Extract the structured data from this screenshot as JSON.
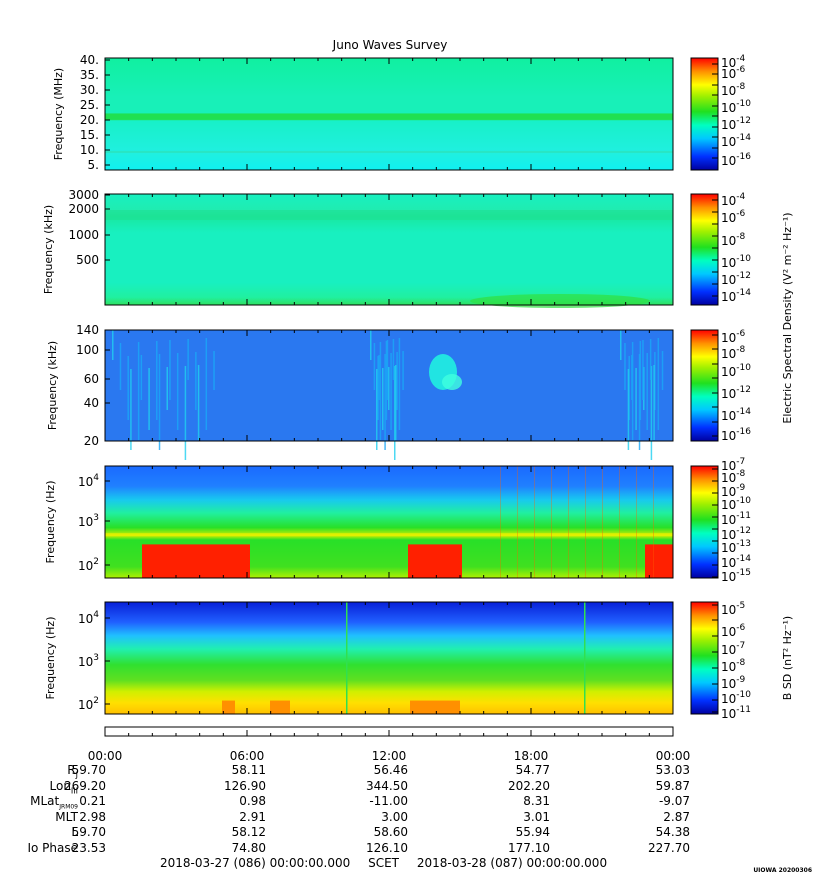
{
  "title": "Juno Waves Survey",
  "stamp": "UIOWA 20200306",
  "colors": {
    "background": "#ffffff",
    "axis": "#000000",
    "panel_cyan": "#1ef0e0",
    "panel_blue": "#2a78f0",
    "dark_blue": "#0000c8",
    "red": "#ff2000",
    "yellow": "#ffe000",
    "green": "#30e030"
  },
  "chart_data": [
    {
      "type": "heatmap",
      "name": "panel-hfr-high",
      "ylabel": "Frequency (MHz)",
      "yticks": [
        "40.",
        "35.",
        "30.",
        "25.",
        "20.",
        "15.",
        "10.",
        "5."
      ],
      "ylim": [
        3,
        41
      ],
      "colorbar_labels": [
        "-4",
        "-6",
        "-8",
        "-10",
        "-12",
        "-14",
        "-16"
      ],
      "colorbar_title": ""
    },
    {
      "type": "heatmap",
      "name": "panel-hfr-low",
      "ylabel": "Frequency (kHz)",
      "yticks": [
        "3000",
        "2000",
        "1000",
        "500"
      ],
      "yscale": "log",
      "colorbar_labels": [
        "-4",
        "-6",
        "-8",
        "-10",
        "-12",
        "-14"
      ],
      "colorbar_title": "Electric Spectral Density (V² m⁻² Hz⁻¹)"
    },
    {
      "type": "heatmap",
      "name": "panel-lfr-high",
      "ylabel": "Frequency (kHz)",
      "yticks": [
        "140",
        "100",
        "60",
        "40",
        "20"
      ],
      "yscale": "log",
      "colorbar_labels": [
        "-6",
        "-8",
        "-10",
        "-12",
        "-14",
        "-16"
      ],
      "colorbar_title": ""
    },
    {
      "type": "heatmap",
      "name": "panel-lfr-low-e",
      "ylabel": "Frequency (Hz)",
      "yticks": [
        "4",
        "3",
        "2"
      ],
      "yscale": "log",
      "colorbar_labels": [
        "-7",
        "-8",
        "-9",
        "-10",
        "-11",
        "-12",
        "-13",
        "-14",
        "-15"
      ],
      "colorbar_title": ""
    },
    {
      "type": "heatmap",
      "name": "panel-lfr-low-b",
      "ylabel": "Frequency (Hz)",
      "yticks": [
        "4",
        "3",
        "2"
      ],
      "yscale": "log",
      "colorbar_labels": [
        "-5",
        "-6",
        "-7",
        "-8",
        "-9",
        "-10",
        "-11"
      ],
      "colorbar_title": "B SD (nT² Hz⁻¹)"
    }
  ],
  "time_axis": {
    "ticks": [
      "00:00",
      "06:00",
      "12:00",
      "18:00",
      "00:00"
    ]
  },
  "ephemeris": {
    "rows": [
      {
        "label": "RJ",
        "values": [
          "59.70",
          "58.11",
          "56.46",
          "54.77",
          "53.03"
        ]
      },
      {
        "label": "LonIII",
        "values": [
          "269.20",
          "126.90",
          "344.50",
          "202.20",
          "59.87"
        ]
      },
      {
        "label": "MLatJRM09",
        "values": [
          "0.21",
          "0.98",
          "-11.00",
          "8.31",
          "-9.07"
        ]
      },
      {
        "label": "MLT",
        "values": [
          "2.98",
          "2.91",
          "3.00",
          "3.01",
          "2.87"
        ]
      },
      {
        "label": "L",
        "values": [
          "59.70",
          "58.12",
          "58.60",
          "55.94",
          "54.38"
        ]
      },
      {
        "label": "Io Phase",
        "values": [
          "23.53",
          "74.80",
          "126.10",
          "177.10",
          "227.70"
        ]
      }
    ],
    "footer_start": "2018-03-27 (086) 00:00:00.000",
    "footer_mid": "SCET",
    "footer_end": "2018-03-28 (087) 00:00:00.000"
  }
}
